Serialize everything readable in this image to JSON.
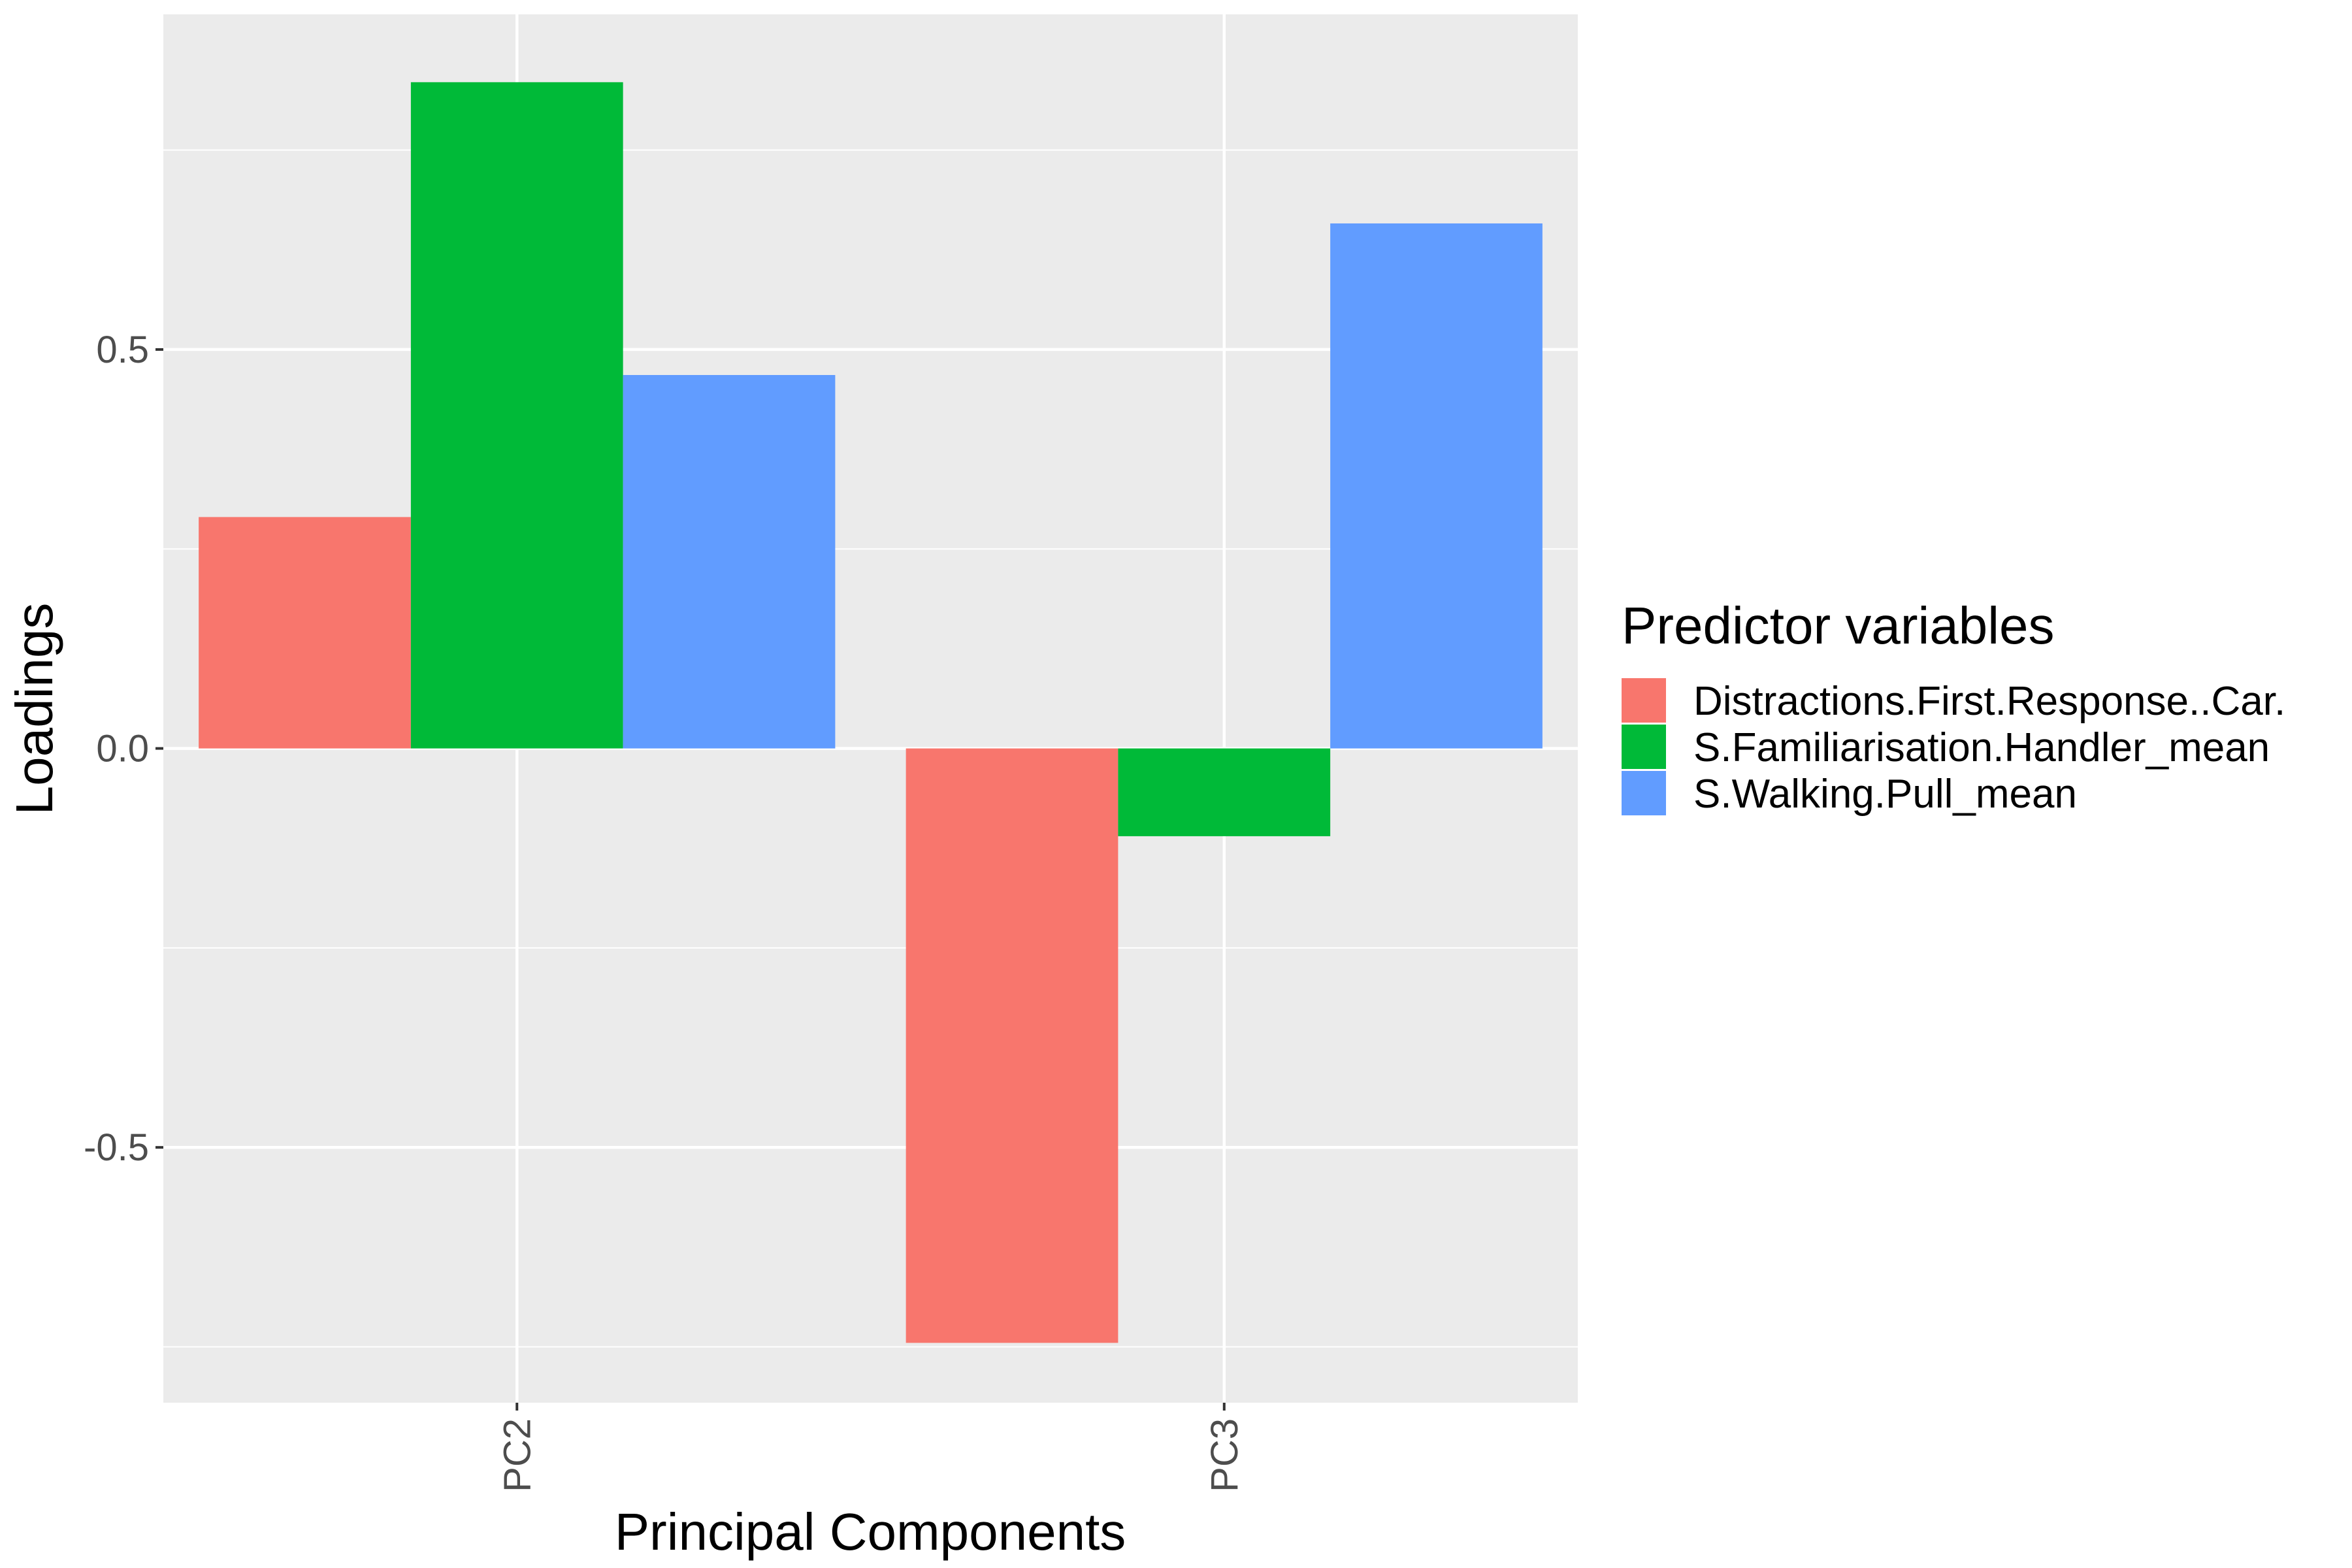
{
  "chart_data": {
    "type": "bar",
    "title": "",
    "xlabel": "Principal Components",
    "ylabel": "Loadings",
    "categories": [
      "PC2",
      "PC3"
    ],
    "ylim": [
      -0.82,
      0.92
    ],
    "y_ticks": [
      -0.5,
      0.0,
      0.5
    ],
    "y_tick_labels": [
      "-0.5",
      "0.0",
      "0.5"
    ],
    "y_minor_ticks": [
      -0.75,
      -0.25,
      0.25,
      0.75
    ],
    "grid": true,
    "legend_title": "Predictor variables",
    "legend_position": "right",
    "series": [
      {
        "name": "Distractions.First.Response..Car.",
        "color": "#F8766D",
        "values": [
          0.29,
          -0.745
        ]
      },
      {
        "name": "S.Familiarisation.Handler_mean",
        "color": "#00BA38",
        "values": [
          0.835,
          -0.11
        ]
      },
      {
        "name": "S.Walking.Pull_mean",
        "color": "#619CFF",
        "values": [
          0.468,
          0.658
        ]
      }
    ]
  },
  "colors": {
    "panel_background": "#EBEBEB",
    "grid_line": "#FFFFFF",
    "axis_text": "#4D4D4D",
    "axis_title": "#000000"
  }
}
